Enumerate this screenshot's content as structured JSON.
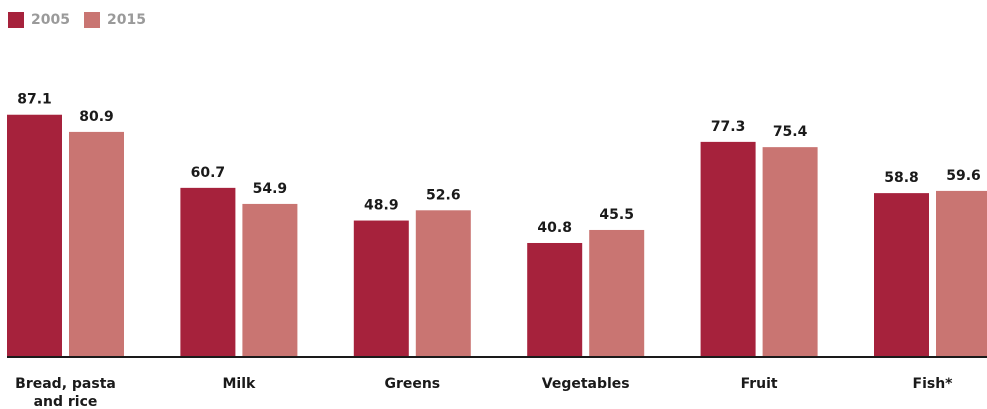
{
  "chart_data": {
    "type": "bar",
    "title": "",
    "xlabel": "",
    "ylabel": "",
    "categories": [
      [
        "Bread, pasta",
        "and rice"
      ],
      [
        "Milk"
      ],
      [
        "Greens"
      ],
      [
        "Vegetables"
      ],
      [
        "Fruit"
      ],
      [
        "Fish*"
      ]
    ],
    "series": [
      {
        "name": "2005",
        "color": "#a6223c",
        "values": [
          87.1,
          60.7,
          48.9,
          40.8,
          77.3,
          58.8
        ]
      },
      {
        "name": "2015",
        "color": "#c97572",
        "values": [
          80.9,
          54.9,
          52.6,
          45.5,
          75.4,
          59.6
        ]
      }
    ],
    "ylim": [
      0,
      100
    ],
    "grid": false,
    "legend": "top-left"
  }
}
